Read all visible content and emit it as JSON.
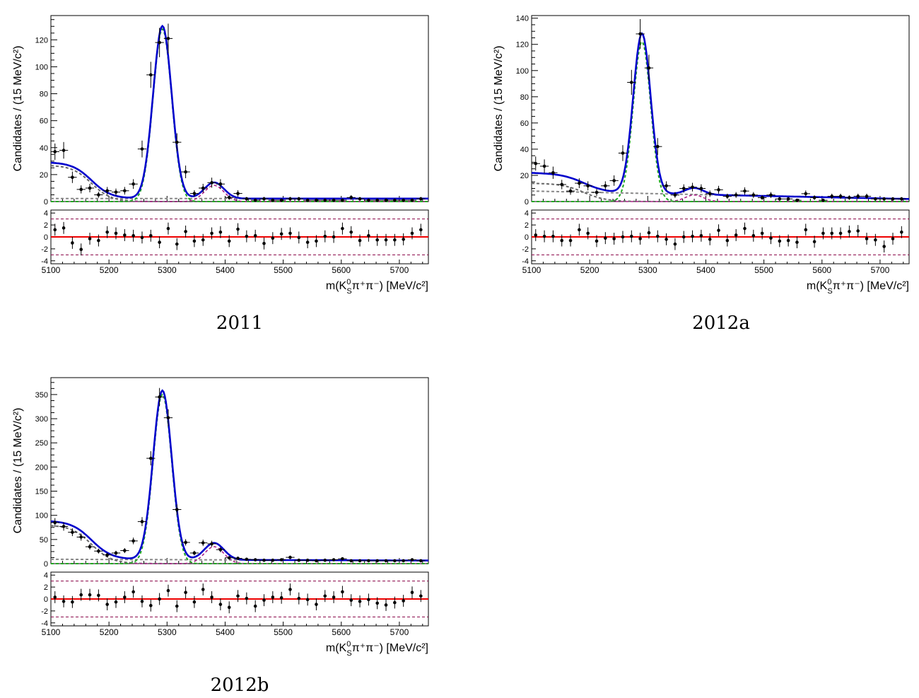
{
  "figure": {
    "xlabel_main": "m(K",
    "xlabel_sup": "0",
    "xlabel_sub": "S",
    "xlabel_rest": "π⁺π⁻) [MeV/c²]",
    "ylabel": "Candidates / (15 MeV/c²)",
    "captions": [
      "2011",
      "2012a",
      "2012b"
    ]
  },
  "colors": {
    "data": "#000000",
    "total_fit": "#0000cc",
    "signal": "#22aa22",
    "bs_component": "#aa2288",
    "combinatorial": "#888888",
    "partial_reco": "#666666",
    "pull_zero": "#ee0000",
    "pull_band": "#880044"
  },
  "chart_data": [
    {
      "type": "line",
      "title": "2011",
      "xlabel": "m(K_S^0 π+π-) [MeV/c^2]",
      "ylabel": "Candidates / (15 MeV/c^2)",
      "xlim": [
        5100,
        5750
      ],
      "ylim": [
        0,
        138
      ],
      "yticks": [
        0,
        20,
        40,
        60,
        80,
        100,
        120
      ],
      "xticks": [
        5100,
        5200,
        5300,
        5400,
        5500,
        5600,
        5700
      ],
      "model": {
        "A_sig": 128,
        "mu": 5292,
        "sigma": 16,
        "A_bs": 12,
        "mu_bs": 5381,
        "A_pr": 27,
        "pr_end": 5170,
        "pr_width": 48,
        "comb0": 2.2,
        "comb_slope": 0.0
      },
      "x": [
        5107,
        5122,
        5137,
        5152,
        5167,
        5182,
        5197,
        5212,
        5227,
        5242,
        5257,
        5272,
        5287,
        5302,
        5317,
        5332,
        5347,
        5362,
        5377,
        5392,
        5407,
        5422,
        5437,
        5452,
        5467,
        5482,
        5497,
        5512,
        5527,
        5542,
        5557,
        5572,
        5587,
        5602,
        5617,
        5632,
        5647,
        5662,
        5677,
        5692,
        5707,
        5722,
        5737
      ],
      "y": [
        37,
        38,
        18,
        9,
        10,
        5,
        8,
        7,
        8,
        13,
        39,
        94,
        118,
        121,
        44,
        22,
        6,
        10,
        14,
        13,
        3,
        6,
        2,
        1,
        2,
        1,
        1,
        2,
        2,
        1,
        1,
        1,
        1,
        1,
        3,
        2,
        1,
        1,
        1,
        1,
        1,
        1,
        2
      ],
      "pulls": [
        1.2,
        1.5,
        -1.0,
        -2.1,
        -0.3,
        -0.6,
        0.8,
        0.6,
        0.3,
        0.2,
        -0.1,
        0.2,
        -0.9,
        1.4,
        -1.2,
        0.9,
        -0.7,
        -0.5,
        0.6,
        0.8,
        -0.7,
        1.3,
        0.1,
        0.2,
        -1.1,
        -0.2,
        0.5,
        0.6,
        -0.1,
        -0.9,
        -0.7,
        0.1,
        0.0,
        1.4,
        0.8,
        -0.6,
        0.2,
        -0.5,
        -0.5,
        -0.5,
        -0.4,
        0.6,
        1.2
      ],
      "pull_ylim": [
        -4.5,
        4.5
      ],
      "pull_band": [
        -3,
        3
      ],
      "pull_yticks": [
        -4,
        -2,
        0,
        2,
        4
      ]
    },
    {
      "type": "line",
      "title": "2012a",
      "xlabel": "m(K_S^0 π+π-) [MeV/c^2]",
      "ylabel": "Candidates / (15 MeV/c^2)",
      "xlim": [
        5100,
        5750
      ],
      "ylim": [
        0,
        142
      ],
      "yticks": [
        0,
        20,
        40,
        60,
        80,
        100,
        120,
        140
      ],
      "xticks": [
        5100,
        5200,
        5300,
        5400,
        5500,
        5600,
        5700
      ],
      "model": {
        "A_sig": 122,
        "mu": 5290,
        "sigma": 15,
        "A_bs": 5,
        "mu_bs": 5380,
        "A_pr": 14,
        "pr_end": 5190,
        "pr_width": 55,
        "comb0": 8.0,
        "comb_slope": -0.0093
      },
      "x": [
        5107,
        5122,
        5137,
        5152,
        5167,
        5182,
        5197,
        5212,
        5227,
        5242,
        5257,
        5272,
        5287,
        5302,
        5317,
        5332,
        5347,
        5362,
        5377,
        5392,
        5407,
        5422,
        5437,
        5452,
        5467,
        5482,
        5497,
        5512,
        5527,
        5542,
        5557,
        5572,
        5587,
        5602,
        5617,
        5632,
        5647,
        5662,
        5677,
        5692,
        5707,
        5722,
        5737
      ],
      "y": [
        29,
        27,
        22,
        13,
        8,
        14,
        12,
        7,
        12,
        16,
        37,
        91,
        128,
        102,
        42,
        12,
        5,
        10,
        11,
        10,
        6,
        9,
        4,
        5,
        8,
        5,
        3,
        5,
        2,
        2,
        1,
        6,
        3,
        1,
        4,
        4,
        3,
        4,
        4,
        2,
        2,
        2,
        2
      ],
      "pulls": [
        0.3,
        0.1,
        0.1,
        -0.6,
        -0.6,
        1.2,
        0.6,
        -0.7,
        -0.2,
        -0.3,
        0.0,
        0.1,
        -0.3,
        0.7,
        0.1,
        -0.4,
        -1.2,
        0.0,
        0.1,
        0.2,
        -0.4,
        1.1,
        -0.6,
        0.3,
        1.4,
        0.2,
        0.6,
        -0.2,
        -0.7,
        -0.6,
        -0.9,
        1.2,
        -0.8,
        0.6,
        0.6,
        0.6,
        0.9,
        1.0,
        -0.3,
        -0.5,
        -1.6,
        -0.3,
        0.8
      ],
      "pull_ylim": [
        -4.5,
        4.5
      ],
      "pull_band": [
        -3,
        3
      ],
      "pull_yticks": [
        -4,
        -2,
        0,
        2,
        4
      ]
    },
    {
      "type": "line",
      "title": "2012b",
      "xlabel": "m(K_S^0 π+π-) [MeV/c^2]",
      "ylabel": "Candidates / (15 MeV/c^2)",
      "xlim": [
        5100,
        5750
      ],
      "ylim": [
        0,
        385
      ],
      "yticks": [
        0,
        50,
        100,
        150,
        200,
        250,
        300,
        350
      ],
      "xticks": [
        5100,
        5200,
        5300,
        5400,
        5500,
        5600,
        5700
      ],
      "model": {
        "A_sig": 350,
        "mu": 5292,
        "sigma": 16,
        "A_bs": 35,
        "mu_bs": 5381,
        "A_pr": 80,
        "pr_end": 5170,
        "pr_width": 50,
        "comb0": 9.0,
        "comb_slope": -0.004
      },
      "x": [
        5107,
        5122,
        5137,
        5152,
        5167,
        5182,
        5197,
        5212,
        5227,
        5242,
        5257,
        5272,
        5287,
        5302,
        5317,
        5332,
        5347,
        5362,
        5377,
        5392,
        5407,
        5422,
        5437,
        5452,
        5467,
        5482,
        5497,
        5512,
        5527,
        5542,
        5557,
        5572,
        5587,
        5602,
        5617,
        5632,
        5647,
        5662,
        5677,
        5692,
        5707,
        5722,
        5737
      ],
      "y": [
        85,
        77,
        65,
        55,
        35,
        26,
        18,
        22,
        27,
        47,
        87,
        218,
        345,
        302,
        112,
        44,
        22,
        43,
        41,
        29,
        12,
        11,
        9,
        8,
        7,
        7,
        8,
        13,
        7,
        7,
        6,
        7,
        8,
        10,
        6,
        6,
        6,
        6,
        6,
        6,
        6,
        8,
        6
      ],
      "pulls": [
        0.3,
        -0.4,
        -0.5,
        0.7,
        0.7,
        0.6,
        -0.9,
        -0.5,
        0.3,
        1.2,
        -0.4,
        -1.1,
        0.0,
        1.4,
        -1.2,
        1.1,
        -0.5,
        1.6,
        0.3,
        -0.9,
        -1.4,
        0.5,
        0.1,
        -1.2,
        -0.2,
        0.3,
        0.2,
        1.6,
        0.1,
        -0.1,
        -0.9,
        0.5,
        0.3,
        1.2,
        -0.2,
        -0.4,
        -0.1,
        -0.7,
        -1.0,
        -0.6,
        -0.3,
        1.1,
        0.5
      ],
      "pull_ylim": [
        -4.5,
        4.5
      ],
      "pull_band": [
        -3,
        3
      ],
      "pull_yticks": [
        -4,
        -2,
        0,
        2,
        4
      ]
    }
  ]
}
